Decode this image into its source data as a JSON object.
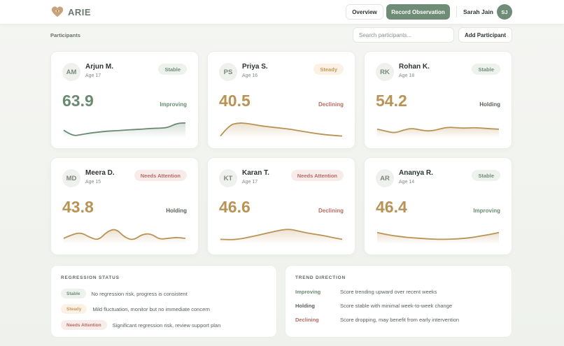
{
  "header": {
    "brand": "ARIE",
    "overview_label": "Overview",
    "record_label": "Record Observation",
    "user_name": "Sarah Jain",
    "user_initials": "SJ"
  },
  "toolbar": {
    "section_label": "Participants",
    "search_placeholder": "Search participants...",
    "add_label": "Add Participant"
  },
  "colors": {
    "accent": "#6f8c76",
    "stable": "#6f8c76",
    "steady": "#c49a5b",
    "attention": "#b66a62",
    "gold": "#b99355"
  },
  "participants": [
    {
      "initials": "AM",
      "name": "Arjun M.",
      "age": "Age 17",
      "status": "Stable",
      "status_key": "stable",
      "score": "63.9",
      "trend": "Improving",
      "trend_key": "improving",
      "spark": [
        0.35,
        0.05,
        0.12,
        0.2,
        0.25,
        0.3,
        0.32,
        0.35,
        0.38,
        0.4,
        0.44,
        0.45,
        0.48,
        0.7,
        0.72
      ],
      "spark_color": "#6a8a72"
    },
    {
      "initials": "PS",
      "name": "Priya S.",
      "age": "Age 16",
      "status": "Steady",
      "status_key": "steady",
      "score": "40.5",
      "trend": "Declining",
      "trend_key": "declining",
      "spark": [
        0.05,
        0.6,
        0.72,
        0.7,
        0.62,
        0.55,
        0.5,
        0.45,
        0.4,
        0.32,
        0.25,
        0.18,
        0.12,
        0.08,
        0.05
      ],
      "spark_color": "#b99355"
    },
    {
      "initials": "RK",
      "name": "Rohan K.",
      "age": "Age 18",
      "status": "Stable",
      "status_key": "stable",
      "score": "54.2",
      "trend": "Holding",
      "trend_key": "holding",
      "spark": [
        0.4,
        0.3,
        0.2,
        0.35,
        0.45,
        0.35,
        0.3,
        0.38,
        0.5,
        0.48,
        0.45,
        0.48,
        0.46,
        0.42,
        0.4
      ],
      "spark_color": "#b99355"
    },
    {
      "initials": "MD",
      "name": "Meera D.",
      "age": "Age 15",
      "status": "Needs Attention",
      "status_key": "attention",
      "score": "43.8",
      "trend": "Holding",
      "trend_key": "holding",
      "spark": [
        0.25,
        0.45,
        0.55,
        0.3,
        0.15,
        0.6,
        0.75,
        0.3,
        0.15,
        0.45,
        0.5,
        0.2,
        0.25,
        0.3,
        0.25
      ],
      "spark_color": "#b99355"
    },
    {
      "initials": "KT",
      "name": "Karan T.",
      "age": "Age 17",
      "status": "Needs Attention",
      "status_key": "attention",
      "score": "46.6",
      "trend": "Declining",
      "trend_key": "declining",
      "spark": [
        0.2,
        0.18,
        0.2,
        0.28,
        0.38,
        0.48,
        0.58,
        0.68,
        0.72,
        0.62,
        0.52,
        0.45,
        0.38,
        0.28,
        0.2
      ],
      "spark_color": "#b99355"
    },
    {
      "initials": "AR",
      "name": "Ananya R.",
      "age": "Age 14",
      "status": "Stable",
      "status_key": "stable",
      "score": "46.4",
      "trend": "Improving",
      "trend_key": "improving",
      "spark": [
        0.55,
        0.45,
        0.38,
        0.32,
        0.28,
        0.25,
        0.22,
        0.2,
        0.2,
        0.22,
        0.25,
        0.3,
        0.38,
        0.45,
        0.55
      ],
      "spark_color": "#b99355"
    }
  ],
  "regression_panel": {
    "title": "REGRESSION STATUS",
    "rows": [
      {
        "badge": "Stable",
        "key": "stable",
        "desc": "No regression risk, progress is consistent"
      },
      {
        "badge": "Steady",
        "key": "steady",
        "desc": "Mild fluctuation, monitor but no immediate concern"
      },
      {
        "badge": "Needs Attention",
        "key": "attention",
        "desc": "Significant regression risk, review support plan"
      }
    ]
  },
  "trend_panel": {
    "title": "TREND DIRECTION",
    "rows": [
      {
        "name": "Improving",
        "key": "improving",
        "desc": "Score trending upward over recent weeks"
      },
      {
        "name": "Holding",
        "key": "holding",
        "desc": "Score stable with minimal week-to-week change"
      },
      {
        "name": "Declining",
        "key": "declining",
        "desc": "Score dropping, may benefit from early intervention"
      }
    ]
  }
}
